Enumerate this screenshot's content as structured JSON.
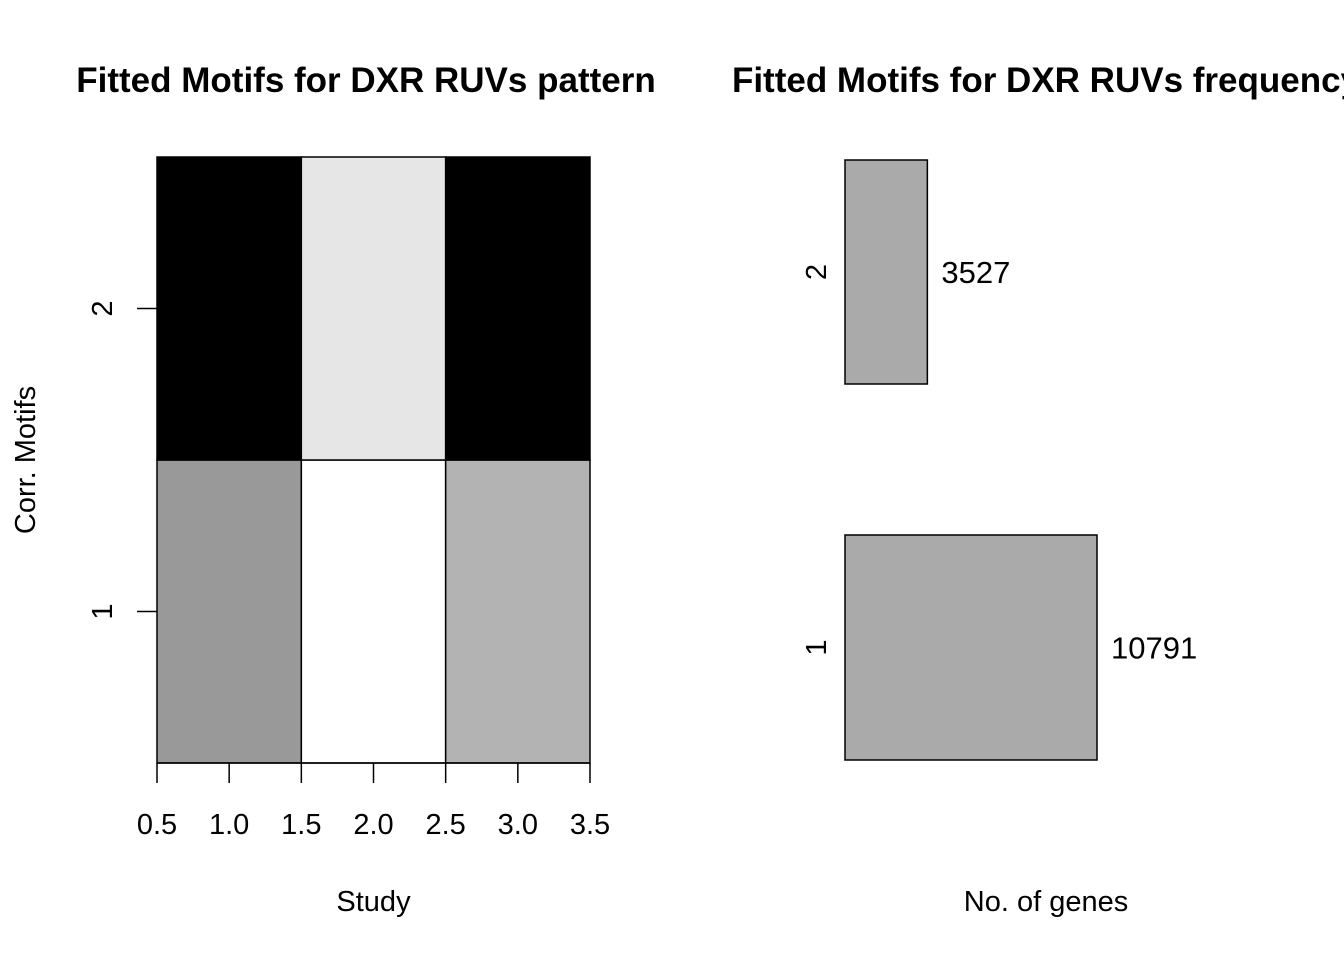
{
  "chart_data": [
    {
      "type": "heatmap",
      "title": "Fitted Motifs for DXR RUVs pattern",
      "xlabel": "Study",
      "ylabel": "Corr. Motifs",
      "xlim": [
        0.5,
        3.5
      ],
      "ylim": [
        0.5,
        2.5
      ],
      "x_ticks": [
        "0.5",
        "1.0",
        "1.5",
        "2.0",
        "2.5",
        "3.0",
        "3.5"
      ],
      "y_ticks": [
        "1",
        "2"
      ],
      "x": [
        1,
        2,
        3
      ],
      "y": [
        1,
        2
      ],
      "cell_colors": [
        [
          "#999999",
          "#ffffff",
          "#b3b3b3"
        ],
        [
          "#000000",
          "#e6e6e6",
          "#000000"
        ]
      ]
    },
    {
      "type": "bar",
      "orientation": "horizontal",
      "title": "Fitted Motifs for DXR RUVs frequency",
      "xlabel": "No. of genes",
      "ylabel": "",
      "categories": [
        "1",
        "2"
      ],
      "values": [
        10791,
        3527
      ],
      "value_labels": [
        "10791",
        "3527"
      ],
      "bar_color": "#aaaaaa"
    }
  ]
}
